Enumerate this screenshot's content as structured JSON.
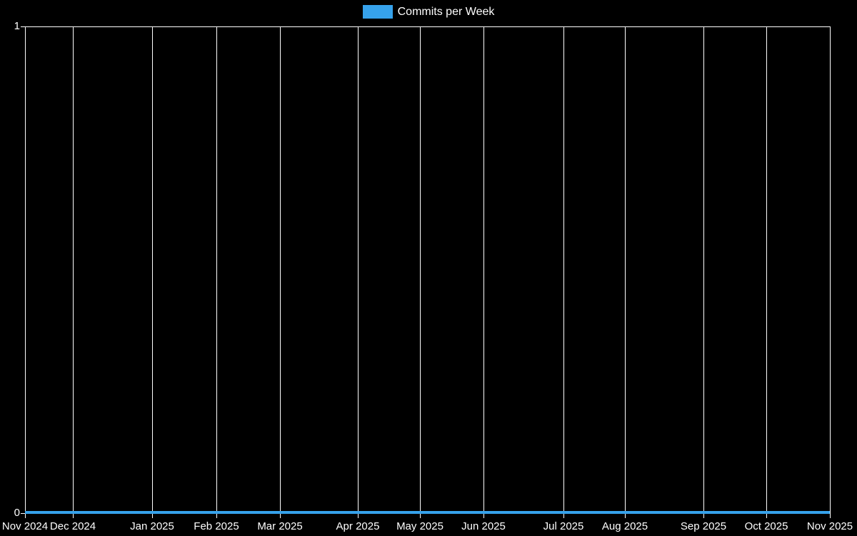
{
  "chart": {
    "legend_label": "Commits per Week",
    "colors": {
      "series": "#36a2eb",
      "grid": "#ffffff",
      "text": "#ffffff",
      "background": "#000000"
    }
  },
  "chart_data": {
    "type": "line",
    "title": "Commits per Week",
    "legend": {
      "position": "top",
      "entries": [
        "Commits per Week"
      ]
    },
    "grid": true,
    "ylim": [
      0,
      1
    ],
    "y_ticks": [
      {
        "label": "0",
        "value": 0
      },
      {
        "label": "1",
        "value": 1
      }
    ],
    "x_ticks": [
      {
        "label": "Nov 2024",
        "pos": 0.0
      },
      {
        "label": "Dec 2024",
        "pos": 0.0594
      },
      {
        "label": "Jan 2025",
        "pos": 0.1579
      },
      {
        "label": "Feb 2025",
        "pos": 0.2378
      },
      {
        "label": "Mar 2025",
        "pos": 0.3168
      },
      {
        "label": "Apr 2025",
        "pos": 0.4135
      },
      {
        "label": "May 2025",
        "pos": 0.4907
      },
      {
        "label": "Jun 2025",
        "pos": 0.5696
      },
      {
        "label": "Jul 2025",
        "pos": 0.669
      },
      {
        "label": "Aug 2025",
        "pos": 0.7453
      },
      {
        "label": "Sep 2025",
        "pos": 0.8429
      },
      {
        "label": "Oct 2025",
        "pos": 0.921
      },
      {
        "label": "Nov 2025",
        "pos": 1.0
      }
    ],
    "series": [
      {
        "name": "Commits per Week",
        "color": "#36a2eb",
        "values": [
          0,
          0,
          0,
          0,
          0,
          0,
          0,
          0,
          0,
          0,
          0,
          0,
          0,
          0,
          0,
          0,
          0,
          0,
          0,
          0,
          0,
          0,
          0,
          0,
          0,
          0,
          0,
          0,
          0,
          0,
          0,
          0,
          0,
          0,
          0,
          0,
          0,
          0,
          0,
          0,
          0,
          0,
          0,
          0,
          0,
          0,
          0,
          0,
          0,
          0,
          0,
          0,
          0
        ]
      }
    ]
  }
}
